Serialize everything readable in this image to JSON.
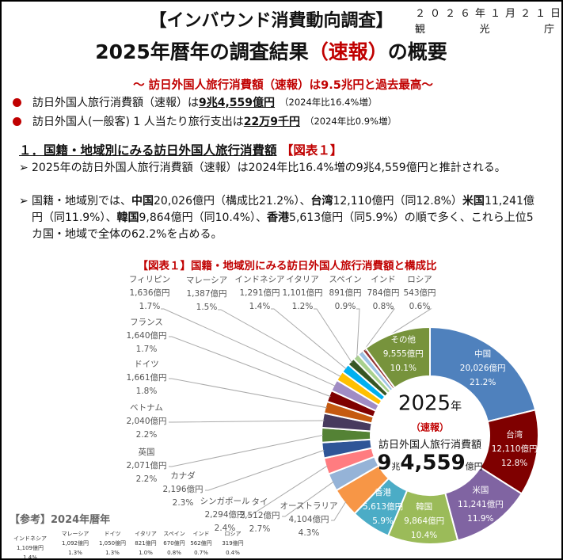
{
  "header": {
    "title1": "【インバウンド消費動向調査】",
    "date": "２０２６年１月２１日",
    "agency": [
      "観",
      "光",
      "庁"
    ],
    "title2_pre": "2025年暦年の調査結果",
    "title2_red": "（速報）",
    "title2_post": "の概要",
    "subtitle": "～ 訪日外国人旅行消費額（速報）は9.5兆円と過去最高～"
  },
  "bullets": [
    {
      "pre": "訪日外国人旅行消費額（速報）は",
      "strong": "9兆4,559億円",
      "note": "（2024年比16.4%増）"
    },
    {
      "pre": "訪日外国人(一般客) 1 人当たり旅行支出は",
      "strong": "22万9千円",
      "note": "（2024年比0.9%増）"
    }
  ],
  "section": {
    "heading": "１．国籍・地域別にみる訪日外国人旅行消費額",
    "fig_ref": "【図表１】",
    "arrow": "➢",
    "p1": "2025年の訪日外国人旅行消費額（速報）は2024年比16.4%増の9兆4,559億円と推計される。",
    "p2_parts": [
      {
        "b": "中国",
        "t": "20,026億円（構成比21.2%）、"
      },
      {
        "b": "台湾",
        "t": "12,110億円（同12.8%）"
      },
      {
        "b": "米国",
        "t": "11,241億円（同11.9%）、"
      },
      {
        "b": "韓国",
        "t": "9,864億円（同10.4%）、"
      },
      {
        "b": "香港",
        "t": "5,613億円（同5.9%）の順で多く、これら上位5カ国・地域で全体の62.2%を占める。"
      }
    ],
    "p2_lead": "国籍・地域別では、"
  },
  "chart_data": {
    "type": "pie",
    "title": "【図表１】国籍・地域別にみる訪日外国人旅行消費額と構成比",
    "unit": "億円",
    "center": {
      "year": "2025",
      "year_suffix": "年",
      "sokuhou": "（速報）",
      "label": "訪日外国人旅行消費額",
      "total_a": "9",
      "total_b": "兆",
      "total_c": "4,559",
      "total_d": "億円"
    },
    "slices": [
      {
        "name": "中国",
        "value": 20026,
        "value_label": "20,026億円",
        "pct": "21.2%",
        "color": "#4f81bd"
      },
      {
        "name": "台湾",
        "value": 12110,
        "value_label": "12,110億円",
        "pct": "12.8%",
        "color": "#7f0000"
      },
      {
        "name": "米国",
        "value": 11241,
        "value_label": "11,241億円",
        "pct": "11.9%",
        "color": "#8064a2"
      },
      {
        "name": "韓国",
        "value": 9864,
        "value_label": "9,864億円",
        "pct": "10.4%",
        "color": "#9bbb59"
      },
      {
        "name": "香港",
        "value": 5613,
        "value_label": "5,613億円",
        "pct": "5.9%",
        "color": "#4bacc6"
      },
      {
        "name": "オーストラリア",
        "value": 4104,
        "value_label": "4,104億円",
        "pct": "4.3%",
        "color": "#f79646"
      },
      {
        "name": "タイ",
        "value": 2512,
        "value_label": "2,512億円",
        "pct": "2.7%",
        "color": "#95b3d7"
      },
      {
        "name": "シンガポール",
        "value": 2294,
        "value_label": "2,294億円",
        "pct": "2.4%",
        "color": "#ff7c80"
      },
      {
        "name": "カナダ",
        "value": 2196,
        "value_label": "2,196億円",
        "pct": "2.3%",
        "color": "#2f5597"
      },
      {
        "name": "英国",
        "value": 2071,
        "value_label": "2,071億円",
        "pct": "2.2%",
        "color": "#548235"
      },
      {
        "name": "ベトナム",
        "value": 2040,
        "value_label": "2,040億円",
        "pct": "2.2%",
        "color": "#473a5e"
      },
      {
        "name": "ドイツ",
        "value": 1661,
        "value_label": "1,661億円",
        "pct": "1.8%",
        "color": "#c55a11"
      },
      {
        "name": "フランス",
        "value": 1640,
        "value_label": "1,640億円",
        "pct": "1.7%",
        "color": "#7f0000"
      },
      {
        "name": "フィリピン",
        "value": 1636,
        "value_label": "1,636億円",
        "pct": "1.7%",
        "color": "#a08cc4"
      },
      {
        "name": "マレーシア",
        "value": 1387,
        "value_label": "1,387億円",
        "pct": "1.5%",
        "color": "#ffc000"
      },
      {
        "name": "インドネシア",
        "value": 1291,
        "value_label": "1,291億円",
        "pct": "1.4%",
        "color": "#00b0f0"
      },
      {
        "name": "イタリア",
        "value": 1101,
        "value_label": "1,101億円",
        "pct": "1.2%",
        "color": "#375623"
      },
      {
        "name": "スペイン",
        "value": 891,
        "value_label": "891億円",
        "pct": "0.9%",
        "color": "#a9d18e"
      },
      {
        "name": "インド",
        "value": 784,
        "value_label": "784億円",
        "pct": "0.8%",
        "color": "#9dc3e6"
      },
      {
        "name": "ロシア",
        "value": 543,
        "value_label": "543億円",
        "pct": "0.6%",
        "color": "#943634"
      },
      {
        "name": "その他",
        "value": 9555,
        "value_label": "9,555億円",
        "pct": "10.1%",
        "color": "#77933c"
      }
    ]
  },
  "reference": {
    "title": "【参考】2024年暦年",
    "items": [
      {
        "name": "インドネシア",
        "value_label": "1,109億円",
        "pct": "1.4%"
      },
      {
        "name": "マレーシア",
        "value_label": "1,092億円",
        "pct": "1.3%"
      },
      {
        "name": "ドイツ",
        "value_label": "1,050億円",
        "pct": "1.3%"
      },
      {
        "name": "イタリア",
        "value_label": "821億円",
        "pct": "1.0%"
      },
      {
        "name": "スペイン",
        "value_label": "670億円",
        "pct": "0.8%"
      },
      {
        "name": "インド",
        "value_label": "562億円",
        "pct": "0.7%"
      },
      {
        "name": "ロシア",
        "value_label": "319億円",
        "pct": "0.4%"
      }
    ]
  }
}
